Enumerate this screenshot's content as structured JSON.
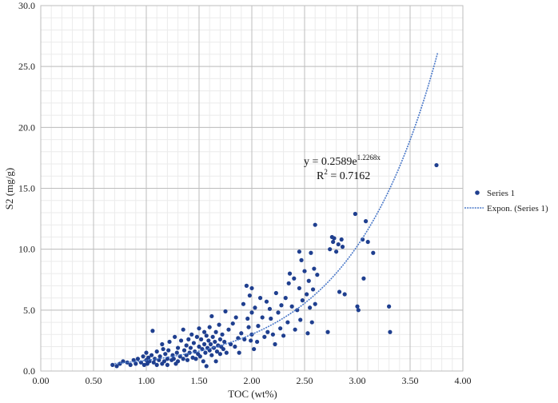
{
  "chart_data": {
    "type": "scatter",
    "xlabel": "TOC (wt%)",
    "ylabel": "S2 (mg/g)",
    "xlim": [
      0,
      4
    ],
    "ylim": [
      0,
      30
    ],
    "x_ticks": [
      "0.00",
      "0.50",
      "1.00",
      "1.50",
      "2.00",
      "2.50",
      "3.00",
      "3.50",
      "4.00"
    ],
    "y_ticks": [
      "0.0",
      "5.0",
      "10.0",
      "15.0",
      "20.0",
      "25.0",
      "30.0"
    ],
    "grid": true,
    "legend_position": "right",
    "colors": {
      "points": "#1f3f8f",
      "trend": "#4a78c8"
    },
    "equation": {
      "prefix": "y = 0.2589e",
      "exponent": "1.2268x",
      "r2_base": "R",
      "r2_exp": "2",
      "r2_value": " = 0.7162"
    },
    "trendline": {
      "type": "exponential",
      "a": 0.2589,
      "b": 1.2268,
      "x_range": [
        0.7,
        3.76
      ]
    },
    "series": [
      {
        "name": "Series 1",
        "points": [
          [
            0.68,
            0.5
          ],
          [
            0.72,
            0.4
          ],
          [
            0.75,
            0.6
          ],
          [
            0.78,
            0.8
          ],
          [
            0.82,
            0.7
          ],
          [
            0.85,
            0.5
          ],
          [
            0.88,
            0.9
          ],
          [
            0.9,
            0.6
          ],
          [
            0.92,
            1.0
          ],
          [
            0.95,
            0.7
          ],
          [
            0.97,
            1.2
          ],
          [
            0.98,
            0.5
          ],
          [
            1.0,
            0.9
          ],
          [
            1.0,
            1.5
          ],
          [
            1.01,
            0.6
          ],
          [
            1.02,
            1.1
          ],
          [
            1.03,
            0.8
          ],
          [
            1.05,
            1.3
          ],
          [
            1.06,
            3.3
          ],
          [
            1.07,
            0.7
          ],
          [
            1.08,
            1.0
          ],
          [
            1.1,
            1.6
          ],
          [
            1.1,
            0.5
          ],
          [
            1.12,
            0.9
          ],
          [
            1.13,
            1.2
          ],
          [
            1.15,
            0.6
          ],
          [
            1.15,
            2.2
          ],
          [
            1.16,
            1.8
          ],
          [
            1.17,
            0.8
          ],
          [
            1.18,
            1.4
          ],
          [
            1.2,
            1.0
          ],
          [
            1.2,
            0.5
          ],
          [
            1.21,
            1.7
          ],
          [
            1.22,
            2.4
          ],
          [
            1.24,
            0.9
          ],
          [
            1.25,
            1.3
          ],
          [
            1.26,
            1.0
          ],
          [
            1.27,
            2.8
          ],
          [
            1.28,
            0.6
          ],
          [
            1.29,
            1.5
          ],
          [
            1.3,
            1.9
          ],
          [
            1.3,
            0.8
          ],
          [
            1.32,
            1.2
          ],
          [
            1.33,
            2.5
          ],
          [
            1.35,
            1.0
          ],
          [
            1.35,
            3.4
          ],
          [
            1.36,
            1.7
          ],
          [
            1.38,
            1.3
          ],
          [
            1.38,
            2.1
          ],
          [
            1.39,
            0.9
          ],
          [
            1.4,
            2.6
          ],
          [
            1.41,
            1.5
          ],
          [
            1.42,
            1.9
          ],
          [
            1.43,
            3.0
          ],
          [
            1.44,
            1.1
          ],
          [
            1.45,
            2.3
          ],
          [
            1.46,
            1.6
          ],
          [
            1.47,
            1.0
          ],
          [
            1.48,
            2.8
          ],
          [
            1.49,
            1.4
          ],
          [
            1.5,
            2.0
          ],
          [
            1.5,
            3.5
          ],
          [
            1.51,
            1.2
          ],
          [
            1.52,
            2.6
          ],
          [
            1.53,
            1.8
          ],
          [
            1.54,
            0.8
          ],
          [
            1.55,
            2.2
          ],
          [
            1.55,
            3.2
          ],
          [
            1.56,
            1.5
          ],
          [
            1.57,
            2.9
          ],
          [
            1.57,
            0.4
          ],
          [
            1.58,
            1.9
          ],
          [
            1.59,
            2.5
          ],
          [
            1.6,
            1.7
          ],
          [
            1.6,
            3.6
          ],
          [
            1.61,
            2.2
          ],
          [
            1.62,
            1.3
          ],
          [
            1.62,
            4.5
          ],
          [
            1.63,
            2.8
          ],
          [
            1.64,
            1.9
          ],
          [
            1.65,
            2.4
          ],
          [
            1.66,
            3.2
          ],
          [
            1.66,
            0.8
          ],
          [
            1.67,
            1.6
          ],
          [
            1.68,
            2.1
          ],
          [
            1.69,
            3.8
          ],
          [
            1.7,
            2.6
          ],
          [
            1.7,
            1.4
          ],
          [
            1.71,
            2.0
          ],
          [
            1.72,
            3.0
          ],
          [
            1.73,
            1.8
          ],
          [
            1.74,
            2.4
          ],
          [
            1.75,
            4.9
          ],
          [
            1.76,
            1.5
          ],
          [
            1.78,
            3.4
          ],
          [
            1.8,
            2.2
          ],
          [
            1.82,
            3.9
          ],
          [
            1.84,
            2.0
          ],
          [
            1.85,
            4.4
          ],
          [
            1.87,
            2.7
          ],
          [
            1.88,
            1.5
          ],
          [
            1.9,
            3.1
          ],
          [
            1.92,
            5.5
          ],
          [
            1.93,
            2.6
          ],
          [
            1.95,
            7.0
          ],
          [
            1.96,
            4.3
          ],
          [
            1.97,
            3.6
          ],
          [
            1.98,
            6.2
          ],
          [
            1.99,
            2.5
          ],
          [
            2.0,
            4.8
          ],
          [
            2.0,
            6.8
          ],
          [
            2.0,
            3.0
          ],
          [
            2.02,
            1.8
          ],
          [
            2.03,
            5.2
          ],
          [
            2.05,
            2.4
          ],
          [
            2.06,
            3.7
          ],
          [
            2.08,
            6.0
          ],
          [
            2.1,
            4.4
          ],
          [
            2.12,
            2.8
          ],
          [
            2.14,
            5.7
          ],
          [
            2.15,
            3.2
          ],
          [
            2.17,
            5.1
          ],
          [
            2.18,
            4.3
          ],
          [
            2.2,
            3.0
          ],
          [
            2.22,
            2.2
          ],
          [
            2.23,
            6.4
          ],
          [
            2.25,
            4.8
          ],
          [
            2.27,
            3.5
          ],
          [
            2.28,
            5.4
          ],
          [
            2.3,
            2.9
          ],
          [
            2.32,
            6.0
          ],
          [
            2.34,
            4.0
          ],
          [
            2.35,
            7.2
          ],
          [
            2.36,
            8.0
          ],
          [
            2.38,
            5.3
          ],
          [
            2.4,
            7.6
          ],
          [
            2.41,
            3.4
          ],
          [
            2.43,
            5.0
          ],
          [
            2.45,
            9.8
          ],
          [
            2.45,
            6.8
          ],
          [
            2.46,
            4.2
          ],
          [
            2.47,
            9.1
          ],
          [
            2.48,
            5.8
          ],
          [
            2.5,
            8.2
          ],
          [
            2.52,
            6.3
          ],
          [
            2.53,
            3.1
          ],
          [
            2.54,
            7.4
          ],
          [
            2.55,
            5.2
          ],
          [
            2.56,
            9.7
          ],
          [
            2.57,
            4.0
          ],
          [
            2.58,
            6.7
          ],
          [
            2.59,
            8.4
          ],
          [
            2.6,
            12.0
          ],
          [
            2.6,
            5.5
          ],
          [
            2.62,
            7.9
          ],
          [
            2.72,
            3.2
          ],
          [
            2.74,
            10.0
          ],
          [
            2.76,
            11.0
          ],
          [
            2.77,
            10.6
          ],
          [
            2.78,
            10.9
          ],
          [
            2.8,
            9.8
          ],
          [
            2.82,
            10.4
          ],
          [
            2.83,
            6.5
          ],
          [
            2.85,
            10.8
          ],
          [
            2.86,
            10.2
          ],
          [
            2.88,
            6.3
          ],
          [
            2.98,
            12.9
          ],
          [
            3.0,
            5.3
          ],
          [
            3.01,
            5.0
          ],
          [
            3.05,
            10.8
          ],
          [
            3.06,
            7.6
          ],
          [
            3.08,
            12.3
          ],
          [
            3.1,
            10.6
          ],
          [
            3.15,
            9.7
          ],
          [
            3.3,
            5.3
          ],
          [
            3.31,
            3.2
          ],
          [
            3.75,
            16.9
          ]
        ]
      }
    ],
    "legend": [
      {
        "label": "Series 1"
      },
      {
        "label": "Expon. (Series 1)"
      }
    ]
  }
}
